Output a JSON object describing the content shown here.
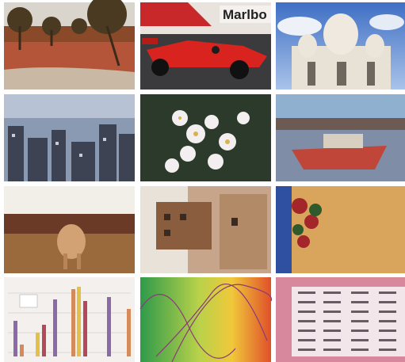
{
  "signs": [
    "Marlbo"
  ]
}
